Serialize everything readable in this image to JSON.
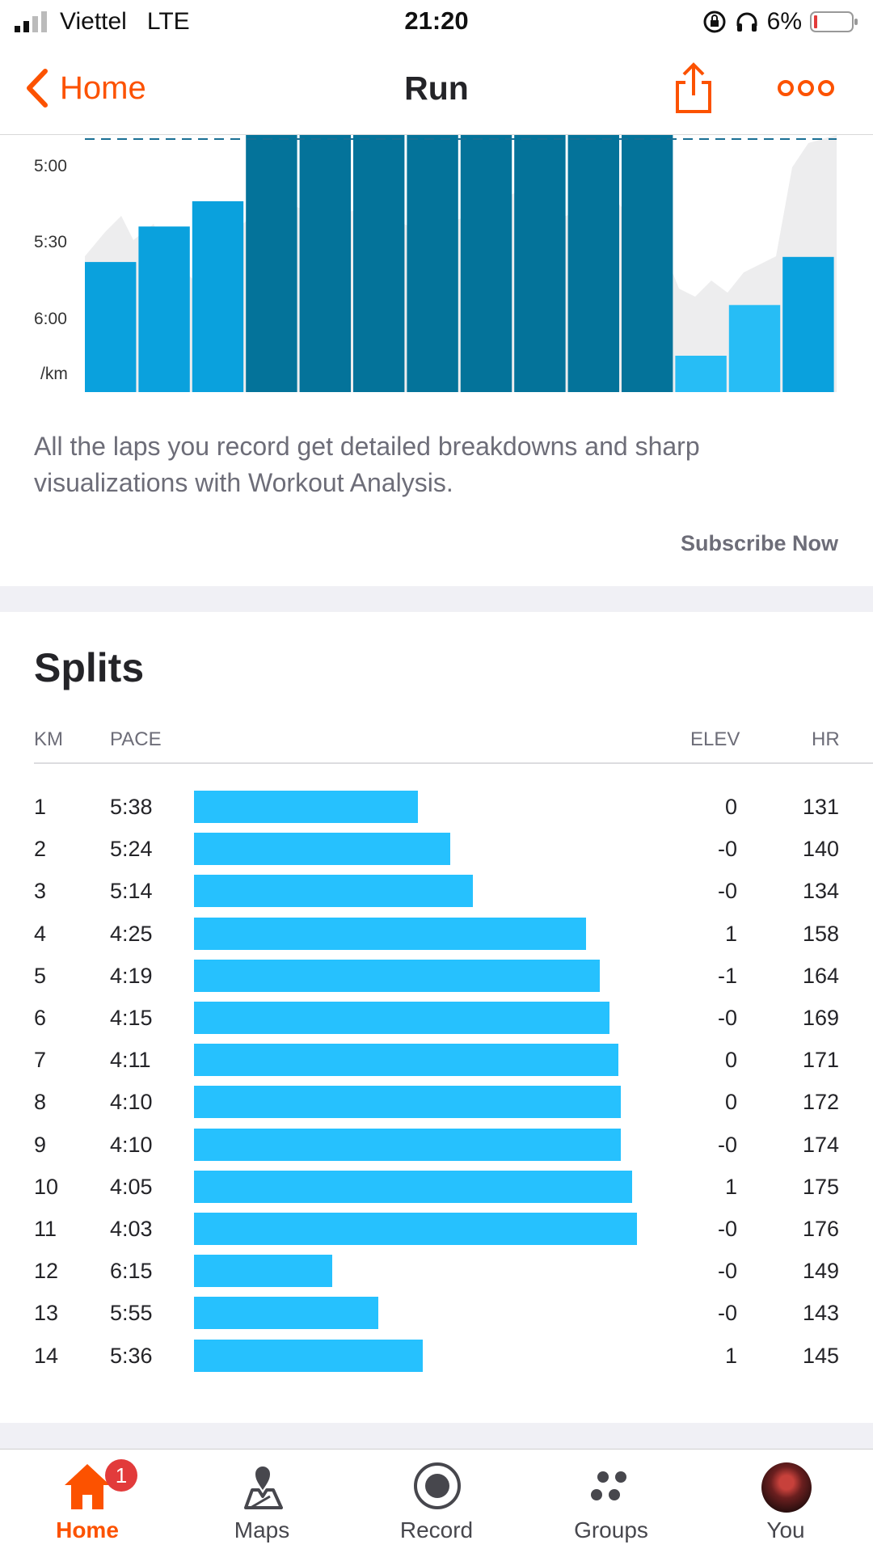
{
  "status_bar": {
    "carrier": "Viettel",
    "network": "LTE",
    "time": "21:20",
    "battery": "6%"
  },
  "nav": {
    "back_label": "Home",
    "title": "Run",
    "share_icon": "share-icon",
    "more_icon": "more-icon",
    "accent_color": "#fc5200"
  },
  "pace_chart": {
    "type": "bar",
    "y_ticks": [
      "5:00",
      "5:30",
      "6:00",
      "/km"
    ],
    "unit": "/km",
    "bar_colors": [
      "#0aa1dd",
      "#04739a",
      "#27bdf5"
    ]
  },
  "chart_data": {
    "type": "bar",
    "categories": [
      "1",
      "2",
      "3",
      "4",
      "5",
      "6",
      "7",
      "8",
      "9",
      "10",
      "11",
      "12",
      "13",
      "14"
    ],
    "values": [
      338,
      324,
      314,
      265,
      259,
      255,
      251,
      250,
      250,
      245,
      243,
      375,
      355,
      336
    ],
    "y_unit": "seconds per km",
    "ylabel": "/km",
    "ylim": [
      240,
      385
    ],
    "grid": false
  },
  "promo": {
    "text": "All the laps you record get detailed breakdowns and sharp visualizations with Workout Analysis.",
    "cta": "Subscribe Now"
  },
  "splits": {
    "title": "Splits",
    "columns": {
      "km": "KM",
      "pace": "PACE",
      "elev": "ELEV",
      "hr": "HR"
    },
    "bar_color": "#26c1fe",
    "rows": [
      {
        "km": "1",
        "pace": "5:38",
        "elev": "0",
        "hr": "131",
        "pace_sec": 338
      },
      {
        "km": "2",
        "pace": "5:24",
        "elev": "-0",
        "hr": "140",
        "pace_sec": 324
      },
      {
        "km": "3",
        "pace": "5:14",
        "elev": "-0",
        "hr": "134",
        "pace_sec": 314
      },
      {
        "km": "4",
        "pace": "4:25",
        "elev": "1",
        "hr": "158",
        "pace_sec": 265
      },
      {
        "km": "5",
        "pace": "4:19",
        "elev": "-1",
        "hr": "164",
        "pace_sec": 259
      },
      {
        "km": "6",
        "pace": "4:15",
        "elev": "-0",
        "hr": "169",
        "pace_sec": 255
      },
      {
        "km": "7",
        "pace": "4:11",
        "elev": "0",
        "hr": "171",
        "pace_sec": 251
      },
      {
        "km": "8",
        "pace": "4:10",
        "elev": "0",
        "hr": "172",
        "pace_sec": 250
      },
      {
        "km": "9",
        "pace": "4:10",
        "elev": "-0",
        "hr": "174",
        "pace_sec": 250
      },
      {
        "km": "10",
        "pace": "4:05",
        "elev": "1",
        "hr": "175",
        "pace_sec": 245
      },
      {
        "km": "11",
        "pace": "4:03",
        "elev": "-0",
        "hr": "176",
        "pace_sec": 243
      },
      {
        "km": "12",
        "pace": "6:15",
        "elev": "-0",
        "hr": "149",
        "pace_sec": 375
      },
      {
        "km": "13",
        "pace": "5:55",
        "elev": "-0",
        "hr": "143",
        "pace_sec": 355
      },
      {
        "km": "14",
        "pace": "5:36",
        "elev": "1",
        "hr": "145",
        "pace_sec": 336
      }
    ]
  },
  "tab_bar": {
    "tabs": [
      {
        "label": "Home",
        "icon": "home-icon",
        "active": true,
        "badge": "1"
      },
      {
        "label": "Maps",
        "icon": "map-pin-icon"
      },
      {
        "label": "Record",
        "icon": "record-icon"
      },
      {
        "label": "Groups",
        "icon": "groups-icon"
      },
      {
        "label": "You",
        "icon": "avatar"
      }
    ]
  }
}
